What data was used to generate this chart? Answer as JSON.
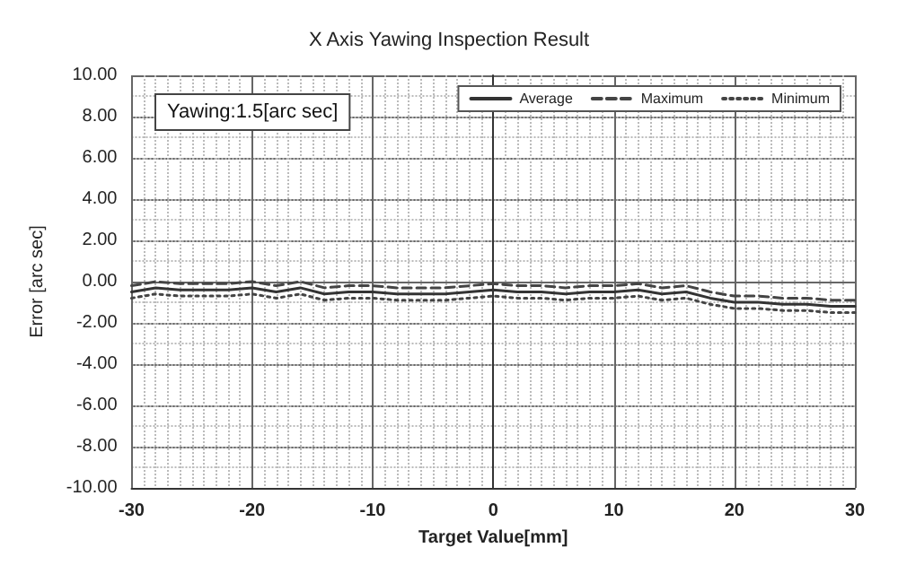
{
  "chart_data": {
    "type": "line",
    "title": "X Axis Yawing Inspection Result",
    "xlabel": "Target Value[mm]",
    "ylabel": "Error [arc sec]",
    "annotations": [
      "Yawing:1.5[arc sec]"
    ],
    "x": [
      -30,
      -28,
      -26,
      -24,
      -22,
      -20,
      -18,
      -16,
      -14,
      -12,
      -10,
      -8,
      -6,
      -4,
      -2,
      0,
      2,
      4,
      6,
      8,
      10,
      12,
      14,
      16,
      18,
      20,
      22,
      24,
      26,
      28,
      30
    ],
    "series": [
      {
        "name": "Average",
        "color": "#333333",
        "line_style": "solid",
        "values": [
          -0.5,
          -0.3,
          -0.4,
          -0.4,
          -0.4,
          -0.3,
          -0.5,
          -0.3,
          -0.6,
          -0.5,
          -0.5,
          -0.6,
          -0.6,
          -0.6,
          -0.5,
          -0.4,
          -0.5,
          -0.5,
          -0.6,
          -0.5,
          -0.5,
          -0.4,
          -0.6,
          -0.5,
          -0.8,
          -1.0,
          -1.0,
          -1.1,
          -1.1,
          -1.2,
          -1.2
        ]
      },
      {
        "name": "Maximum",
        "color": "#444444",
        "line_style": "dashed",
        "values": [
          -0.2,
          0.0,
          -0.1,
          -0.1,
          -0.1,
          0.0,
          -0.2,
          0.0,
          -0.3,
          -0.2,
          -0.2,
          -0.3,
          -0.3,
          -0.3,
          -0.2,
          -0.1,
          -0.2,
          -0.2,
          -0.3,
          -0.2,
          -0.2,
          -0.1,
          -0.3,
          -0.2,
          -0.5,
          -0.7,
          -0.7,
          -0.8,
          -0.8,
          -0.9,
          -0.9
        ]
      },
      {
        "name": "Minimum",
        "color": "#444444",
        "line_style": "dotted",
        "values": [
          -0.8,
          -0.6,
          -0.7,
          -0.7,
          -0.7,
          -0.6,
          -0.8,
          -0.6,
          -0.9,
          -0.8,
          -0.8,
          -0.9,
          -0.9,
          -0.9,
          -0.8,
          -0.7,
          -0.8,
          -0.8,
          -0.9,
          -0.8,
          -0.8,
          -0.7,
          -0.9,
          -0.8,
          -1.1,
          -1.3,
          -1.3,
          -1.4,
          -1.4,
          -1.5,
          -1.5
        ]
      }
    ],
    "xlim": [
      -30,
      30
    ],
    "xticks": [
      -30,
      -20,
      -10,
      0,
      10,
      20,
      30
    ],
    "ylim": [
      -10,
      10
    ],
    "yticks": [
      {
        "value": -10,
        "label": "-10.00"
      },
      {
        "value": -8,
        "label": "-8.00"
      },
      {
        "value": -6,
        "label": "-6.00"
      },
      {
        "value": -4,
        "label": "-4.00"
      },
      {
        "value": -2,
        "label": "-2.00"
      },
      {
        "value": 0,
        "label": "0.00"
      },
      {
        "value": 2,
        "label": "2.00"
      },
      {
        "value": 4,
        "label": "4.00"
      },
      {
        "value": 6,
        "label": "6.00"
      },
      {
        "value": 8,
        "label": "8.00"
      },
      {
        "value": 10,
        "label": "10.00"
      }
    ],
    "grid": true,
    "legend": "top right",
    "marker": "none"
  }
}
